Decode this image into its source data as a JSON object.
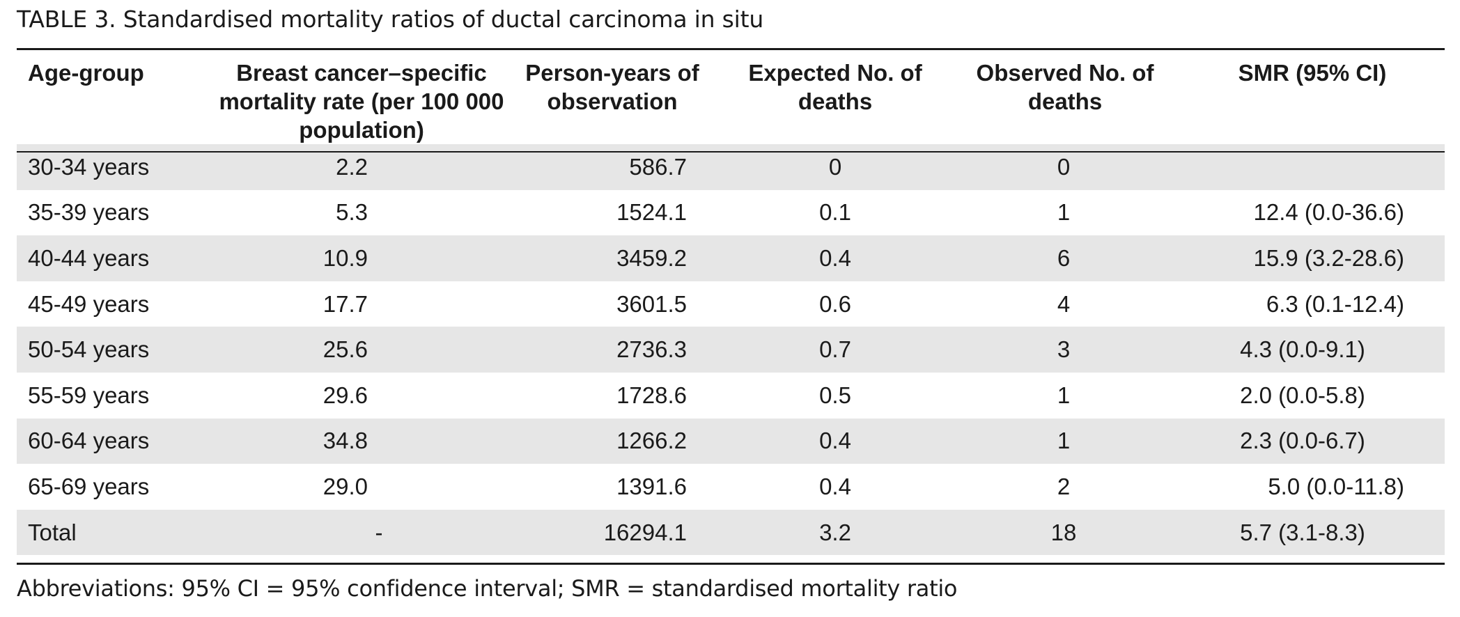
{
  "caption": {
    "label": "TABLE 3.",
    "title": "Standardised mortality ratios of ductal carcinoma in situ"
  },
  "table": {
    "headers": [
      "Age-group",
      "Breast cancer–specific mortality rate (per 100 000 population)",
      "Person-years of observation",
      "Expected No. of deaths",
      "Observed No. of deaths",
      "SMR (95% CI)"
    ],
    "rows": [
      [
        "30-34 years",
        "2.2",
        "586.7",
        "0",
        "0",
        ""
      ],
      [
        "35-39 years",
        "5.3",
        "1524.1",
        "0.1",
        "1",
        "12.4 (0.0-36.6)"
      ],
      [
        "40-44 years",
        "10.9",
        "3459.2",
        "0.4",
        "6",
        "15.9 (3.2-28.6)"
      ],
      [
        "45-49 years",
        "17.7",
        "3601.5",
        "0.6",
        "4",
        "6.3 (0.1-12.4)"
      ],
      [
        "50-54 years",
        "25.6",
        "2736.3",
        "0.7",
        "3",
        "4.3 (0.0-9.1)"
      ],
      [
        "55-59 years",
        "29.6",
        "1728.6",
        "0.5",
        "1",
        "2.0 (0.0-5.8)"
      ],
      [
        "60-64 years",
        "34.8",
        "1266.2",
        "0.4",
        "1",
        "2.3 (0.0-6.7)"
      ],
      [
        "65-69 years",
        "29.0",
        "1391.6",
        "0.4",
        "2",
        "5.0 (0.0-11.8)"
      ],
      [
        "Total",
        "-",
        "16294.1",
        "3.2",
        "18",
        "5.7 (3.1-8.3)"
      ]
    ]
  },
  "footnote": "Abbreviations: 95% CI = 95% confidence interval; SMR = standardised mortality ratio",
  "colors": {
    "text": "#1a1a1a",
    "row_shade": "#e6e6e6",
    "background": "#ffffff"
  }
}
